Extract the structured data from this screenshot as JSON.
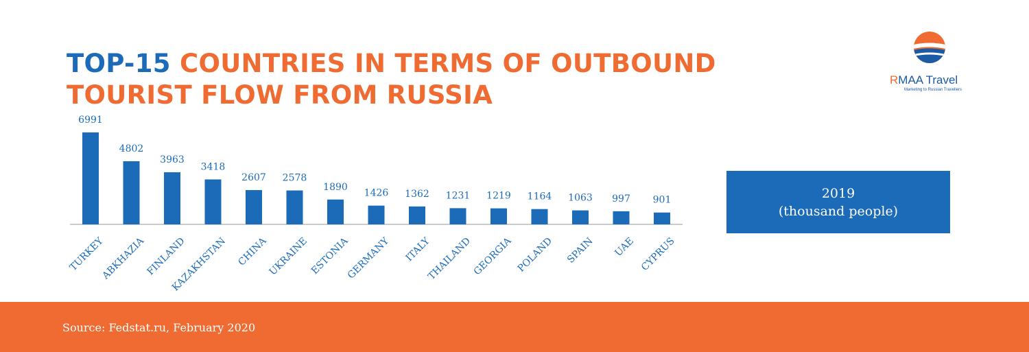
{
  "title": {
    "highlight": "TOP-15",
    "rest": "COUNTRIES IN TERMS OF OUTBOUND TOURIST FLOW FROM RUSSIA"
  },
  "logo": {
    "first_letter": "R",
    "name_rest": "MAA Travel",
    "tagline": "Marketing to Russian Travellers"
  },
  "legend": {
    "year": "2019",
    "unit": "(thousand people)"
  },
  "footer": {
    "source": "Source: Fedstat.ru, February 2020"
  },
  "colors": {
    "blue": "#1b6bb8",
    "orange": "#ef6b32"
  },
  "chart_data": {
    "type": "bar",
    "categories": [
      "TURKEY",
      "ABKHAZIA",
      "FINLAND",
      "KAZAKHSTAN",
      "CHINA",
      "UKRAINE",
      "ESTONIA",
      "GERMANY",
      "ITALY",
      "THAILAND",
      "GEORGIA",
      "POLAND",
      "SPAIN",
      "UAE",
      "CYPRUS"
    ],
    "series": [
      {
        "name": "2019",
        "values": [
          6991,
          4802,
          3963,
          3418,
          2607,
          2578,
          1890,
          1426,
          1362,
          1231,
          1219,
          1164,
          1063,
          997,
          901
        ]
      }
    ],
    "ylabel": "(thousand people)",
    "ylim": [
      0,
      7000
    ],
    "grid": false,
    "axis": false,
    "legend": "right",
    "data_labels": true
  }
}
